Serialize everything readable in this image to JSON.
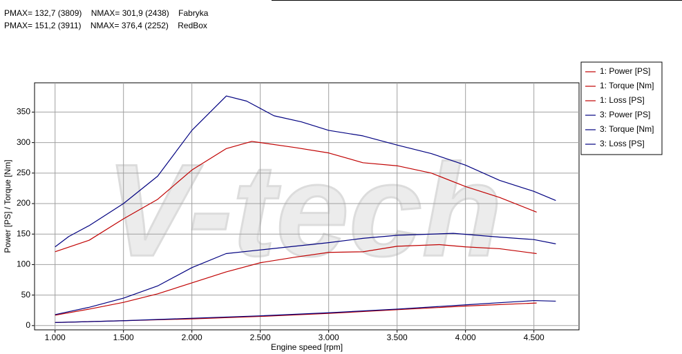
{
  "chart_data": {
    "type": "line",
    "header": [
      "PMAX= 132,7 (3809)    NMAX= 301,9 (2438)    Fabryka",
      "PMAX= 151,2 (3911)    NMAX= 376,4 (2252)    RedBox"
    ],
    "watermark": "V-tech",
    "xlabel": "Engine speed [rpm]",
    "ylabel": "Power [PS] / Torque [Nm]",
    "xlim": [
      850,
      4830
    ],
    "ylim": [
      -7,
      398
    ],
    "xticks": [
      {
        "value": 1000,
        "label": "1.000"
      },
      {
        "value": 1500,
        "label": "1.500"
      },
      {
        "value": 2000,
        "label": "2.000"
      },
      {
        "value": 2500,
        "label": "2.500"
      },
      {
        "value": 3000,
        "label": "3.000"
      },
      {
        "value": 3500,
        "label": "3.500"
      },
      {
        "value": 4000,
        "label": "4.000"
      },
      {
        "value": 4500,
        "label": "4.500"
      }
    ],
    "yticks": [
      0,
      50,
      100,
      150,
      200,
      250,
      300,
      350
    ],
    "grid": true,
    "legend": "outside-right",
    "series": [
      {
        "name": "1: Power [PS]",
        "color": "#c00000",
        "x": [
          1000,
          1250,
          1500,
          1750,
          2000,
          2250,
          2500,
          2750,
          3000,
          3250,
          3500,
          3809,
          4000,
          4250,
          4520
        ],
        "values": [
          17,
          27,
          38,
          52,
          70,
          88,
          103,
          112,
          120,
          121,
          130,
          132.7,
          129,
          126,
          118
        ]
      },
      {
        "name": "1: Torque [Nm]",
        "color": "#c00000",
        "x": [
          1000,
          1250,
          1500,
          1750,
          2000,
          2250,
          2438,
          2500,
          2750,
          3000,
          3250,
          3500,
          3750,
          4000,
          4250,
          4520
        ],
        "values": [
          121,
          140,
          175,
          207,
          255,
          290,
          301.9,
          300,
          292,
          283,
          267,
          262,
          250,
          228,
          210,
          186
        ]
      },
      {
        "name": "1: Loss [PS]",
        "color": "#c00000",
        "x": [
          1000,
          1500,
          2000,
          2500,
          3000,
          3500,
          4000,
          4520
        ],
        "values": [
          5,
          8,
          11,
          15,
          20,
          26,
          32,
          37
        ]
      },
      {
        "name": "3: Power [PS]",
        "color": "#000080",
        "x": [
          1000,
          1250,
          1500,
          1750,
          2000,
          2250,
          2500,
          2750,
          3000,
          3250,
          3500,
          3911,
          4250,
          4500,
          4660
        ],
        "values": [
          18,
          30,
          45,
          65,
          95,
          118,
          124,
          130,
          136,
          143,
          148,
          151.2,
          145,
          141,
          134
        ]
      },
      {
        "name": "3: Torque [Nm]",
        "color": "#000080",
        "x": [
          1000,
          1100,
          1250,
          1500,
          1750,
          2000,
          2252,
          2400,
          2600,
          2800,
          3000,
          3250,
          3500,
          3750,
          4000,
          4250,
          4500,
          4660
        ],
        "values": [
          129,
          146,
          164,
          200,
          245,
          320,
          376.4,
          368,
          344,
          334,
          320,
          311,
          296,
          282,
          263,
          238,
          220,
          205
        ]
      },
      {
        "name": "3: Loss [PS]",
        "color": "#000080",
        "x": [
          1000,
          1500,
          2000,
          2500,
          3000,
          3500,
          4000,
          4500,
          4660
        ],
        "values": [
          5,
          8,
          12,
          16,
          21,
          27,
          34,
          41,
          40
        ]
      }
    ]
  }
}
